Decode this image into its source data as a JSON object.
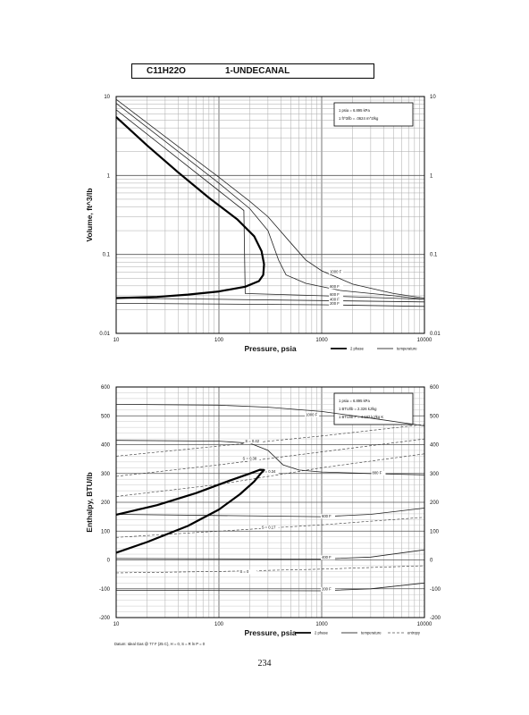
{
  "header": {
    "formula": "C11H22O",
    "name": "1-UNDECANAL"
  },
  "page_number": "234",
  "chart_data": [
    {
      "type": "line",
      "title": "",
      "xlabel": "Pressure,  psia",
      "ylabel": "Volume, ft^3/lb",
      "x_scale": "log",
      "y_scale": "log",
      "xlim": [
        10,
        10000
      ],
      "ylim": [
        0.01,
        10
      ],
      "x_ticks": [
        "10",
        "100",
        "1000",
        "10000"
      ],
      "y_ticks": [
        "0.01",
        "0.1",
        "1",
        "10"
      ],
      "conversions": [
        "1 psia  =  6.895 kPa",
        "1 ft^3/lb  =  .0624 m^3/kg"
      ],
      "legend": [
        "2 phase",
        "temperature"
      ],
      "two_phase": [
        {
          "x": 10,
          "y": 5.5
        },
        {
          "x": 20,
          "y": 2.4
        },
        {
          "x": 40,
          "y": 1.1
        },
        {
          "x": 80,
          "y": 0.52
        },
        {
          "x": 150,
          "y": 0.28
        },
        {
          "x": 220,
          "y": 0.17
        },
        {
          "x": 260,
          "y": 0.11
        },
        {
          "x": 275,
          "y": 0.075
        },
        {
          "x": 270,
          "y": 0.055
        },
        {
          "x": 245,
          "y": 0.046
        },
        {
          "x": 180,
          "y": 0.039
        },
        {
          "x": 100,
          "y": 0.034
        },
        {
          "x": 50,
          "y": 0.031
        },
        {
          "x": 25,
          "y": 0.029
        },
        {
          "x": 10,
          "y": 0.028
        }
      ],
      "series": [
        {
          "name": "1000 F",
          "label_at": [
            1200,
            0.058
          ],
          "points": [
            {
              "x": 10,
              "y": 9.2
            },
            {
              "x": 30,
              "y": 3.1
            },
            {
              "x": 100,
              "y": 0.95
            },
            {
              "x": 200,
              "y": 0.47
            },
            {
              "x": 300,
              "y": 0.3
            },
            {
              "x": 500,
              "y": 0.14
            },
            {
              "x": 700,
              "y": 0.085
            },
            {
              "x": 1000,
              "y": 0.062
            },
            {
              "x": 2000,
              "y": 0.042
            },
            {
              "x": 5000,
              "y": 0.032
            },
            {
              "x": 10000,
              "y": 0.028
            }
          ]
        },
        {
          "name": "800 F",
          "label_at": [
            1200,
            0.038
          ],
          "points": [
            {
              "x": 10,
              "y": 8.2
            },
            {
              "x": 30,
              "y": 2.7
            },
            {
              "x": 100,
              "y": 0.8
            },
            {
              "x": 200,
              "y": 0.38
            },
            {
              "x": 300,
              "y": 0.2
            },
            {
              "x": 380,
              "y": 0.085
            },
            {
              "x": 450,
              "y": 0.055
            },
            {
              "x": 700,
              "y": 0.043
            },
            {
              "x": 1500,
              "y": 0.035
            },
            {
              "x": 5000,
              "y": 0.03
            },
            {
              "x": 10000,
              "y": 0.027
            }
          ]
        },
        {
          "name": "600 F",
          "label_at": [
            1200,
            0.03
          ],
          "points": [
            {
              "x": 10,
              "y": 6.8
            },
            {
              "x": 30,
              "y": 2.2
            },
            {
              "x": 100,
              "y": 0.64
            },
            {
              "x": 175,
              "y": 0.36
            },
            {
              "x": 180,
              "y": 0.032
            },
            {
              "x": 1000,
              "y": 0.03
            },
            {
              "x": 10000,
              "y": 0.027
            }
          ]
        },
        {
          "name": "400 F",
          "label_at": [
            1200,
            0.026
          ],
          "points": [
            {
              "x": 10,
              "y": 0.028
            },
            {
              "x": 1000,
              "y": 0.026
            },
            {
              "x": 10000,
              "y": 0.025
            }
          ]
        },
        {
          "name": "200 F",
          "label_at": [
            1200,
            0.023
          ],
          "points": [
            {
              "x": 10,
              "y": 0.024
            },
            {
              "x": 1000,
              "y": 0.023
            },
            {
              "x": 10000,
              "y": 0.022
            }
          ]
        }
      ]
    },
    {
      "type": "line",
      "title": "",
      "xlabel": "Pressure,  psia",
      "ylabel": "Enthalpy, BTU/lb",
      "x_scale": "log",
      "xlim": [
        10,
        10000
      ],
      "ylim": [
        -200,
        600
      ],
      "x_ticks": [
        "10",
        "100",
        "1000",
        "10000"
      ],
      "y_ticks": [
        "-200",
        "-100",
        "0",
        "100",
        "200",
        "300",
        "400",
        "500",
        "600"
      ],
      "conversions": [
        "1 psia  =  6.895 kPa",
        "1 BTU/lb  =  2.326 kJ/kg",
        "1 BTU/lb F  =  4.187 kJ/kg K"
      ],
      "legend": [
        "2 phase",
        "temperature",
        "entropy"
      ],
      "footnote": "Datum: Ideal Gas @ 77 F (25 C),  H = 0,  S = R ln P = 0",
      "two_phase": [
        {
          "x": 10,
          "y": 25
        },
        {
          "x": 20,
          "y": 62
        },
        {
          "x": 50,
          "y": 118
        },
        {
          "x": 100,
          "y": 175
        },
        {
          "x": 160,
          "y": 228
        },
        {
          "x": 220,
          "y": 272
        },
        {
          "x": 255,
          "y": 300
        },
        {
          "x": 275,
          "y": 312
        },
        {
          "x": 250,
          "y": 313
        },
        {
          "x": 200,
          "y": 300
        },
        {
          "x": 120,
          "y": 272
        },
        {
          "x": 60,
          "y": 232
        },
        {
          "x": 25,
          "y": 190
        },
        {
          "x": 10,
          "y": 157
        }
      ],
      "temperature": [
        {
          "name": "1000 F",
          "label_at": [
            700,
            500
          ],
          "points": [
            {
              "x": 10,
              "y": 540
            },
            {
              "x": 100,
              "y": 537
            },
            {
              "x": 300,
              "y": 530
            },
            {
              "x": 1000,
              "y": 515
            },
            {
              "x": 3000,
              "y": 492
            },
            {
              "x": 10000,
              "y": 465
            }
          ]
        },
        {
          "name": "800 F",
          "label_at": [
            3100,
            298
          ],
          "points": [
            {
              "x": 10,
              "y": 415
            },
            {
              "x": 100,
              "y": 412
            },
            {
              "x": 200,
              "y": 405
            },
            {
              "x": 300,
              "y": 380
            },
            {
              "x": 420,
              "y": 330
            },
            {
              "x": 600,
              "y": 312
            },
            {
              "x": 1000,
              "y": 305
            },
            {
              "x": 3000,
              "y": 300
            },
            {
              "x": 10000,
              "y": 295
            }
          ]
        },
        {
          "name": "600 F",
          "label_at": [
            1000,
            148
          ],
          "points": [
            {
              "x": 10,
              "y": 158
            },
            {
              "x": 1000,
              "y": 150
            },
            {
              "x": 3000,
              "y": 158
            },
            {
              "x": 10000,
              "y": 180
            }
          ]
        },
        {
          "name": "400 F",
          "label_at": [
            1000,
            5
          ],
          "points": [
            {
              "x": 10,
              "y": 5
            },
            {
              "x": 1000,
              "y": 3
            },
            {
              "x": 3000,
              "y": 10
            },
            {
              "x": 10000,
              "y": 35
            }
          ]
        },
        {
          "name": "200 F",
          "label_at": [
            1000,
            -105
          ],
          "points": [
            {
              "x": 10,
              "y": -105
            },
            {
              "x": 1000,
              "y": -107
            },
            {
              "x": 3000,
              "y": -100
            },
            {
              "x": 10000,
              "y": -80
            }
          ]
        }
      ],
      "entropy": [
        {
          "name": "S = 0.42",
          "label_at": [
            180,
            408
          ],
          "points": [
            {
              "x": 10,
              "y": 360
            },
            {
              "x": 100,
              "y": 395
            },
            {
              "x": 1000,
              "y": 430
            },
            {
              "x": 10000,
              "y": 470
            }
          ]
        },
        {
          "name": "S = 0.38",
          "label_at": [
            170,
            348
          ],
          "points": [
            {
              "x": 10,
              "y": 290
            },
            {
              "x": 100,
              "y": 330
            },
            {
              "x": 1000,
              "y": 375
            },
            {
              "x": 10000,
              "y": 420
            }
          ]
        },
        {
          "name": "S = 0.34",
          "label_at": [
            260,
            303
          ],
          "points": [
            {
              "x": 10,
              "y": 220
            },
            {
              "x": 100,
              "y": 262
            },
            {
              "x": 1000,
              "y": 320
            },
            {
              "x": 10000,
              "y": 368
            }
          ]
        },
        {
          "name": "S = 0.17",
          "label_at": [
            260,
            108
          ],
          "points": [
            {
              "x": 10,
              "y": 78
            },
            {
              "x": 100,
              "y": 100
            },
            {
              "x": 1000,
              "y": 122
            },
            {
              "x": 10000,
              "y": 148
            }
          ]
        },
        {
          "name": "S = 0",
          "label_at": [
            160,
            -45
          ],
          "points": [
            {
              "x": 10,
              "y": -45
            },
            {
              "x": 100,
              "y": -40
            },
            {
              "x": 1000,
              "y": -32
            },
            {
              "x": 10000,
              "y": -20
            }
          ]
        }
      ]
    }
  ]
}
